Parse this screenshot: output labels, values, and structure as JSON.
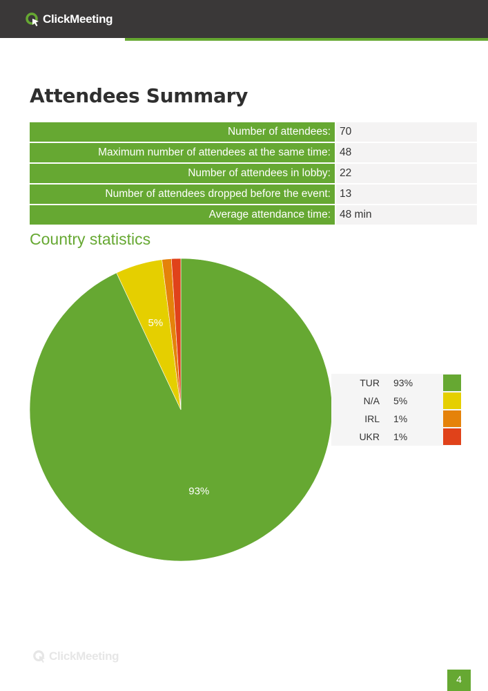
{
  "header": {
    "logo_text": "ClickMeeting"
  },
  "colors": {
    "brand_green": "#66a832",
    "dark_bar": "#3a3838",
    "na_yellow": "#e5cf00",
    "irl_orange": "#e5820a",
    "ukr_red": "#e0421a"
  },
  "title": "Attendees Summary",
  "summary": {
    "rows": [
      {
        "label": "Number of attendees:",
        "value": "70"
      },
      {
        "label": "Maximum number of attendees at the same time:",
        "value": "48"
      },
      {
        "label": "Number of attendees in lobby:",
        "value": "22"
      },
      {
        "label": "Number of attendees dropped before the event:",
        "value": "13"
      },
      {
        "label": "Average attendance time:",
        "value": "48 min"
      }
    ]
  },
  "country_section_title": "Country statistics",
  "chart_data": {
    "type": "pie",
    "title": "Country statistics",
    "slices": [
      {
        "name": "TUR",
        "value": 93,
        "label": "93%",
        "color": "#66a832"
      },
      {
        "name": "N/A",
        "value": 5,
        "label": "5%",
        "color": "#e5cf00"
      },
      {
        "name": "IRL",
        "value": 1,
        "label": "1%",
        "color": "#e5820a"
      },
      {
        "name": "UKR",
        "value": 1,
        "label": "1%",
        "color": "#e0421a"
      }
    ],
    "legend_position": "right"
  },
  "legend": {
    "rows": [
      {
        "code": "TUR",
        "pct": "93%"
      },
      {
        "code": "N/A",
        "pct": "5%"
      },
      {
        "code": "IRL",
        "pct": "1%"
      },
      {
        "code": "UKR",
        "pct": "1%"
      }
    ]
  },
  "footer": {
    "logo_text": "ClickMeeting",
    "page_number": "4"
  }
}
